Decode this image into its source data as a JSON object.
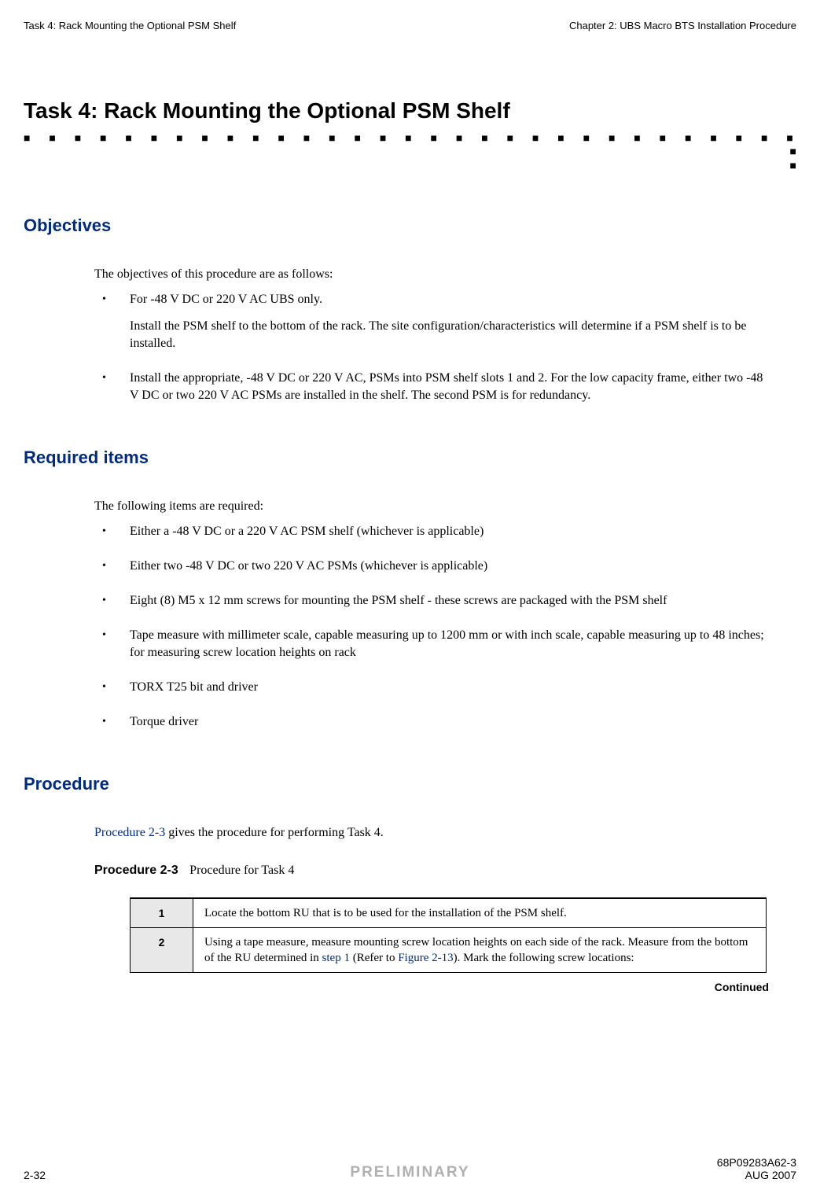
{
  "header": {
    "left": "Task 4: Rack Mounting the Optional PSM Shelf",
    "right": "Chapter 2: UBS Macro BTS Installation Procedure"
  },
  "title": "Task 4: Rack Mounting the Optional PSM Shelf",
  "dots_row": "■ ■ ■ ■ ■ ■ ■ ■ ■ ■ ■ ■ ■ ■ ■ ■ ■ ■ ■ ■ ■ ■ ■ ■ ■ ■ ■ ■ ■ ■ ■ ■ ■ ■ ■ ■ ■ ■ ■ ■ ■ ■ ■ ■ ■ ■ ■ ■ ■ ■ ■ ■ ■ ■ ■ ■ ■ ■",
  "trailing_dot": "■",
  "sections": {
    "objectives": {
      "heading": "Objectives",
      "intro": "The objectives of this procedure are as follows:",
      "items": [
        {
          "main": "For -48 V DC or 220 V AC UBS only.",
          "sub": "Install the PSM shelf to the bottom of the rack. The site configuration/characteristics will determine if a PSM shelf is to be installed."
        },
        {
          "main": "Install the appropriate, -48 V DC or 220 V AC, PSMs into PSM shelf slots 1 and 2. For the low capacity frame, either two -48 V DC or two 220 V AC PSMs are installed in the shelf. The second PSM is for redundancy."
        }
      ]
    },
    "required": {
      "heading": "Required items",
      "intro": "The following items are required:",
      "items": [
        "Either a -48 V DC or a 220 V AC PSM shelf (whichever is applicable)",
        "Either two -48 V DC or two 220 V AC PSMs (whichever is applicable)",
        "Eight (8) M5 x 12 mm screws for mounting the PSM shelf - these screws are packaged with the PSM shelf",
        "Tape measure with millimeter scale, capable measuring up to 1200 mm or with inch scale, capable measuring up to 48 inches; for measuring screw location heights on rack",
        "TORX T25 bit and driver",
        "Torque driver"
      ]
    },
    "procedure": {
      "heading": "Procedure",
      "intro_prefix": "Procedure 2-3",
      "intro_suffix": " gives the procedure for performing Task 4.",
      "table_title_bold": "Procedure 2-3",
      "table_title_label": "Procedure for Task 4",
      "rows": [
        {
          "num": "1",
          "text": "Locate the bottom RU that is to be used for the installation of the PSM shelf."
        },
        {
          "num": "2",
          "text_before": "Using a tape measure, measure mounting screw location heights on each side of the rack. Measure from the bottom of the RU determined in ",
          "link1": "step 1",
          "text_mid": " (Refer to ",
          "link2": "Figure 2-13",
          "text_after": "). Mark the following screw locations:"
        }
      ],
      "continued": "Continued"
    }
  },
  "footer": {
    "left": "2-32",
    "center": "PRELIMINARY",
    "right_top": "68P09283A62-3",
    "right_bottom": "AUG 2007"
  },
  "colors": {
    "heading_blue": "#002b7f",
    "link_blue": "#002b7f",
    "preliminary_gray": "#b0b0b0",
    "table_step_bg": "#e8e8e8"
  }
}
